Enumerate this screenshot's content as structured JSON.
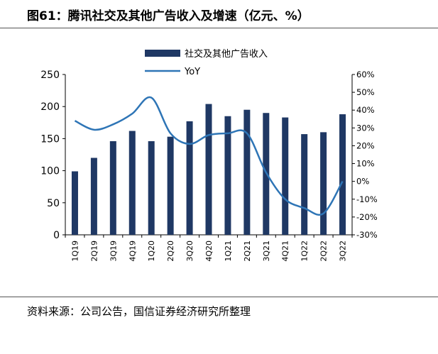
{
  "header": {
    "title": "图61：腾讯社交及其他广告收入及增速（亿元、%）"
  },
  "footer": {
    "source": "资料来源：公司公告，国信证券经济研究所整理"
  },
  "chart_data": {
    "type": "bar",
    "categories": [
      "1Q19",
      "2Q19",
      "3Q19",
      "4Q19",
      "1Q20",
      "2Q20",
      "3Q20",
      "4Q20",
      "1Q21",
      "2Q21",
      "3Q21",
      "4Q21",
      "1Q22",
      "2Q22",
      "3Q22"
    ],
    "series": [
      {
        "name": "社交及其他广告收入",
        "type": "bar",
        "axis": "left",
        "color": "#1f3864",
        "values": [
          99,
          120,
          146,
          162,
          146,
          153,
          177,
          204,
          185,
          195,
          190,
          183,
          157,
          160,
          188
        ]
      },
      {
        "name": "YoY",
        "type": "line",
        "axis": "right",
        "color": "#2e75b6",
        "values": [
          34,
          29,
          32,
          38,
          47,
          27,
          21,
          26,
          27,
          27,
          5,
          -10,
          -15,
          -18,
          0
        ]
      }
    ],
    "y_left": {
      "lim": [
        0,
        250
      ],
      "ticks": [
        "0",
        "50",
        "100",
        "150",
        "200",
        "250"
      ]
    },
    "y_right": {
      "lim": [
        -30,
        60
      ],
      "ticks": [
        "-30%",
        "-20%",
        "-10%",
        "0%",
        "10%",
        "20%",
        "30%",
        "40%",
        "50%",
        "60%"
      ]
    },
    "legend": {
      "position": "top-center",
      "items": [
        "社交及其他广告收入",
        "YoY"
      ]
    },
    "grid": false
  }
}
